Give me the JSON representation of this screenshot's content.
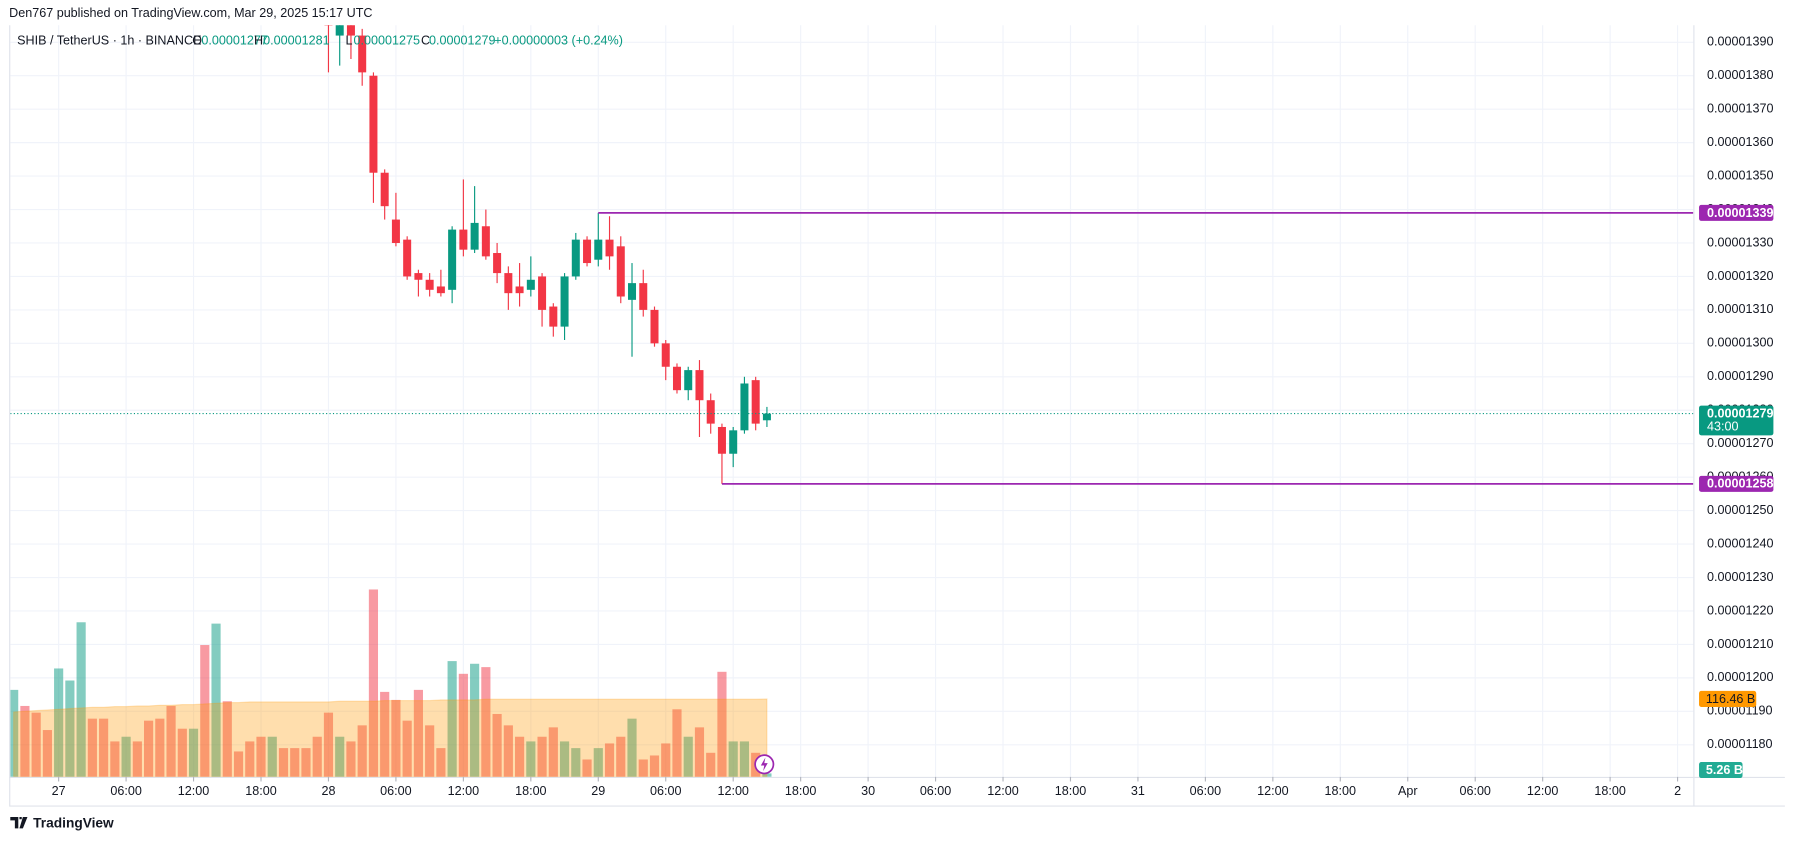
{
  "chart_data": {
    "type": "candlestick",
    "published": "Den767 published on TradingView.com, Mar 29, 2025 15:17 UTC",
    "symbol": "SHIB / TetherUS · 1h · BINANCE",
    "ohlc_letters": [
      "O",
      "H",
      "L",
      "C"
    ],
    "change": "+0.00000003 (+0.24%)",
    "brand": "TradingView",
    "up_color": "#089981",
    "down_color": "#f23645",
    "grid": true,
    "xlim": [
      -52.3,
      97.4
    ],
    "xticks": [
      {
        "value": -48,
        "label": "27"
      },
      {
        "value": -42,
        "label": "06:00"
      },
      {
        "value": -36,
        "label": "12:00"
      },
      {
        "value": -30,
        "label": "18:00"
      },
      {
        "value": -24,
        "label": "28"
      },
      {
        "value": -18,
        "label": "06:00"
      },
      {
        "value": -12,
        "label": "12:00"
      },
      {
        "value": -6,
        "label": "18:00"
      },
      {
        "value": 0,
        "label": "29"
      },
      {
        "value": 6,
        "label": "06:00"
      },
      {
        "value": 12,
        "label": "12:00"
      },
      {
        "value": 18,
        "label": "18:00"
      },
      {
        "value": 24,
        "label": "30"
      },
      {
        "value": 30,
        "label": "06:00"
      },
      {
        "value": 36,
        "label": "12:00"
      },
      {
        "value": 42,
        "label": "18:00"
      },
      {
        "value": 48,
        "label": "31"
      },
      {
        "value": 54,
        "label": "06:00"
      },
      {
        "value": 60,
        "label": "12:00"
      },
      {
        "value": 66,
        "label": "18:00"
      },
      {
        "value": 72,
        "label": "Apr"
      },
      {
        "value": 78,
        "label": "06:00"
      },
      {
        "value": 84,
        "label": "12:00"
      },
      {
        "value": 90,
        "label": "18:00"
      },
      {
        "value": 96,
        "label": "2"
      }
    ],
    "ylim": [
      1.1704e-05,
      1.3951e-05
    ],
    "yticks": [
      {
        "value": 1.39e-05,
        "label": "0.00001390"
      },
      {
        "value": 1.38e-05,
        "label": "0.00001380"
      },
      {
        "value": 1.37e-05,
        "label": "0.00001370"
      },
      {
        "value": 1.36e-05,
        "label": "0.00001360"
      },
      {
        "value": 1.35e-05,
        "label": "0.00001350"
      },
      {
        "value": 1.34e-05,
        "label": "0.00001340"
      },
      {
        "value": 1.33e-05,
        "label": "0.00001330"
      },
      {
        "value": 1.32e-05,
        "label": "0.00001320"
      },
      {
        "value": 1.31e-05,
        "label": "0.00001310"
      },
      {
        "value": 1.3e-05,
        "label": "0.00001300"
      },
      {
        "value": 1.29e-05,
        "label": "0.00001290"
      },
      {
        "value": 1.28e-05,
        "label": "0.00001280"
      },
      {
        "value": 1.27e-05,
        "label": "0.00001270"
      },
      {
        "value": 1.26e-05,
        "label": "0.00001260"
      },
      {
        "value": 1.25e-05,
        "label": "0.00001250"
      },
      {
        "value": 1.24e-05,
        "label": "0.00001240"
      },
      {
        "value": 1.23e-05,
        "label": "0.00001230"
      },
      {
        "value": 1.22e-05,
        "label": "0.00001220"
      },
      {
        "value": 1.21e-05,
        "label": "0.00001210"
      },
      {
        "value": 1.2e-05,
        "label": "0.00001200"
      },
      {
        "value": 1.19e-05,
        "label": "0.00001190"
      },
      {
        "value": 1.18e-05,
        "label": "0.00001180"
      }
    ],
    "y2lim": [
      0,
      1123
    ],
    "candles": {
      "x": [
        -24,
        -23,
        -22,
        -21,
        -20,
        -19,
        -18,
        -17,
        -16,
        -15,
        -14,
        -13,
        -12,
        -11,
        -10,
        -9,
        -8,
        -7,
        -6,
        -5,
        -4,
        -3,
        -2,
        -1,
        0,
        1,
        2,
        3,
        4,
        5,
        6,
        7,
        8,
        9,
        10,
        11,
        12,
        13,
        14,
        15
      ],
      "open": [
        1.4e-05,
        1.392e-05,
        1.396e-05,
        1.392e-05,
        1.38e-05,
        1.351e-05,
        1.337e-05,
        1.331e-05,
        1.321e-05,
        1.319e-05,
        1.317e-05,
        1.316e-05,
        1.334e-05,
        1.328e-05,
        1.335e-05,
        1.327e-05,
        1.321e-05,
        1.317e-05,
        1.316e-05,
        1.32e-05,
        1.311e-05,
        1.305e-05,
        1.32e-05,
        1.331e-05,
        1.325e-05,
        1.331e-05,
        1.329e-05,
        1.313e-05,
        1.318e-05,
        1.31e-05,
        1.3e-05,
        1.293e-05,
        1.286e-05,
        1.292e-05,
        1.283e-05,
        1.275e-05,
        1.267e-05,
        1.274e-05,
        1.289e-05,
        1.277e-05
      ],
      "high": [
        1.402e-05,
        1.4e-05,
        1.398e-05,
        1.394e-05,
        1.381e-05,
        1.352e-05,
        1.345e-05,
        1.332e-05,
        1.322e-05,
        1.321e-05,
        1.322e-05,
        1.335e-05,
        1.349e-05,
        1.347e-05,
        1.34e-05,
        1.33e-05,
        1.323e-05,
        1.324e-05,
        1.326e-05,
        1.321e-05,
        1.312e-05,
        1.321e-05,
        1.333e-05,
        1.332e-05,
        1.339e-05,
        1.338e-05,
        1.332e-05,
        1.324e-05,
        1.322e-05,
        1.311e-05,
        1.301e-05,
        1.294e-05,
        1.293e-05,
        1.295e-05,
        1.285e-05,
        1.276e-05,
        1.275e-05,
        1.29e-05,
        1.29e-05,
        1.281e-05
      ],
      "low": [
        1.381e-05,
        1.383e-05,
        1.385e-05,
        1.377e-05,
        1.342e-05,
        1.337e-05,
        1.329e-05,
        1.319e-05,
        1.314e-05,
        1.314e-05,
        1.314e-05,
        1.312e-05,
        1.326e-05,
        1.327e-05,
        1.325e-05,
        1.318e-05,
        1.31e-05,
        1.311e-05,
        1.314e-05,
        1.305e-05,
        1.302e-05,
        1.301e-05,
        1.319e-05,
        1.323e-05,
        1.323e-05,
        1.322e-05,
        1.312e-05,
        1.296e-05,
        1.308e-05,
        1.299e-05,
        1.289e-05,
        1.285e-05,
        1.283e-05,
        1.272e-05,
        1.273e-05,
        1.258e-05,
        1.263e-05,
        1.273e-05,
        1.274e-05,
        1.275e-05
      ],
      "close": [
        1.395e-05,
        1.396e-05,
        1.392e-05,
        1.381e-05,
        1.351e-05,
        1.341e-05,
        1.33e-05,
        1.32e-05,
        1.319e-05,
        1.316e-05,
        1.315e-05,
        1.334e-05,
        1.328e-05,
        1.336e-05,
        1.326e-05,
        1.321e-05,
        1.315e-05,
        1.315e-05,
        1.319e-05,
        1.31e-05,
        1.305e-05,
        1.32e-05,
        1.331e-05,
        1.324e-05,
        1.331e-05,
        1.326e-05,
        1.314e-05,
        1.318e-05,
        1.31e-05,
        1.3e-05,
        1.293e-05,
        1.286e-05,
        1.292e-05,
        1.283e-05,
        1.276e-05,
        1.267e-05,
        1.274e-05,
        1.288e-05,
        1.276e-05,
        1.279e-05
      ]
    },
    "countdown": "43:00",
    "markers": [
      {
        "value": 1.339e-05,
        "from_x": 0,
        "color": "#9c27b0"
      },
      {
        "value": 1.258e-05,
        "from_x": 11,
        "color": "#9c27b0"
      }
    ],
    "volume": {
      "axis": "y2",
      "x": [
        -52,
        -51,
        -50,
        -49,
        -48,
        -47,
        -46,
        -45,
        -44,
        -43,
        -42,
        -41,
        -40,
        -39,
        -38,
        -37,
        -36,
        -35,
        -34,
        -33,
        -32,
        -31,
        -30,
        -29,
        -28,
        -27,
        -26,
        -25,
        -24,
        -23,
        -22,
        -21,
        -20,
        -19,
        -18,
        -17,
        -16,
        -15,
        -14,
        -13,
        -12,
        -11,
        -10,
        -9,
        -8,
        -7,
        -6,
        -5,
        -4,
        -3,
        -2,
        -1,
        0,
        1,
        2,
        3,
        4,
        5,
        6,
        7,
        8,
        9,
        10,
        11,
        12,
        13,
        14,
        15
      ],
      "values": [
        130,
        106,
        96,
        70,
        162,
        144,
        231,
        87,
        87,
        53,
        60,
        53,
        84,
        87,
        106,
        72,
        72,
        197,
        229,
        113,
        38,
        53,
        60,
        60,
        43,
        43,
        43,
        60,
        96,
        60,
        53,
        77,
        280,
        127,
        115,
        84,
        130,
        77,
        43,
        173,
        154,
        169,
        164,
        94,
        77,
        60,
        53,
        60,
        74,
        53,
        43,
        26,
        43,
        50,
        60,
        87,
        26,
        32,
        50,
        101,
        60,
        74,
        36,
        157,
        53,
        53,
        36,
        5.26
      ],
      "colors": [
        "#089981",
        "#f23645",
        "#f23645",
        "#f23645",
        "#089981",
        "#089981",
        "#089981",
        "#f23645",
        "#f23645",
        "#f23645",
        "#089981",
        "#f23645",
        "#f23645",
        "#f23645",
        "#f23645",
        "#f23645",
        "#089981",
        "#f23645",
        "#089981",
        "#f23645",
        "#f23645",
        "#f23645",
        "#f23645",
        "#089981",
        "#f23645",
        "#f23645",
        "#f23645",
        "#f23645",
        "#f23645",
        "#089981",
        "#f23645",
        "#f23645",
        "#f23645",
        "#f23645",
        "#f23645",
        "#f23645",
        "#f23645",
        "#f23645",
        "#f23645",
        "#089981",
        "#f23645",
        "#089981",
        "#f23645",
        "#f23645",
        "#f23645",
        "#f23645",
        "#089981",
        "#f23645",
        "#f23645",
        "#089981",
        "#089981",
        "#f23645",
        "#089981",
        "#f23645",
        "#f23645",
        "#089981",
        "#f23645",
        "#f23645",
        "#f23645",
        "#f23645",
        "#089981",
        "#f23645",
        "#f23645",
        "#f23645",
        "#089981",
        "#089981",
        "#f23645",
        "#089981"
      ],
      "label": "5.26 B",
      "label_color": "#22ab94",
      "ma": [
        97,
        98,
        99,
        100,
        101,
        102,
        103,
        104,
        104,
        105,
        105,
        106,
        106,
        107,
        107,
        108,
        108,
        109,
        110,
        111,
        111,
        112,
        112,
        112,
        112,
        112,
        112,
        112,
        112,
        113,
        113,
        113,
        113,
        114,
        114,
        114,
        114,
        114,
        115,
        115,
        115,
        115,
        116,
        116,
        116,
        116,
        116,
        116,
        116,
        116,
        116,
        116,
        116,
        116,
        116,
        116,
        116,
        116,
        116,
        116,
        116,
        116,
        116,
        116,
        116,
        116,
        116,
        116.46
      ],
      "ma_label": "116.46 B",
      "ma_color": "#ff9800"
    }
  }
}
